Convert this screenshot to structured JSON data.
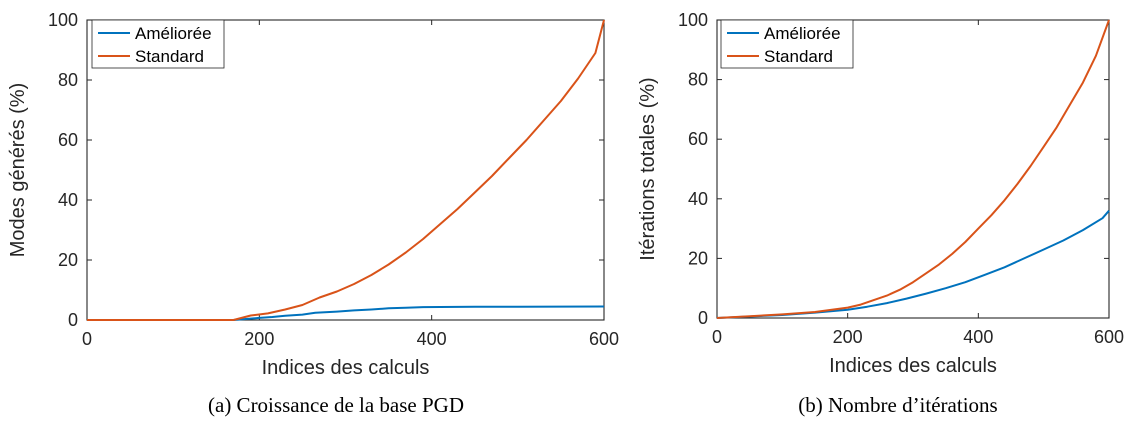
{
  "chart_data": [
    {
      "type": "line",
      "caption": "(a) Croissance de la base PGD",
      "xlabel": "Indices des calculs",
      "ylabel": "Modes générés (%)",
      "xlim": [
        0,
        600
      ],
      "ylim": [
        0,
        100
      ],
      "xticks": [
        "0",
        "200",
        "400",
        "600"
      ],
      "yticks": [
        "0",
        "20",
        "40",
        "60",
        "80",
        "100"
      ],
      "grid": false,
      "legend": "top-left",
      "series": [
        {
          "name": "Améliorée",
          "color": "#0072BD",
          "x": [
            0,
            170,
            200,
            215,
            230,
            250,
            265,
            290,
            310,
            330,
            350,
            370,
            390,
            450,
            500,
            600
          ],
          "y": [
            0,
            0,
            0.7,
            1.0,
            1.4,
            1.8,
            2.4,
            2.8,
            3.2,
            3.5,
            3.9,
            4.1,
            4.3,
            4.4,
            4.4,
            4.5
          ]
        },
        {
          "name": "Standard",
          "color": "#D95319",
          "x": [
            0,
            170,
            190,
            210,
            230,
            250,
            270,
            290,
            310,
            330,
            350,
            370,
            390,
            410,
            430,
            450,
            470,
            490,
            510,
            530,
            550,
            570,
            590,
            600
          ],
          "y": [
            0,
            0,
            1.5,
            2.2,
            3.5,
            5.0,
            7.5,
            9.5,
            12,
            15,
            18.5,
            22.5,
            27,
            32,
            37,
            42.5,
            48,
            54,
            60,
            66.5,
            73,
            80.5,
            89,
            100
          ]
        }
      ]
    },
    {
      "type": "line",
      "caption": "(b) Nombre d’itérations",
      "xlabel": "Indices des calculs",
      "ylabel": "Itérations totales (%)",
      "xlim": [
        0,
        600
      ],
      "ylim": [
        0,
        100
      ],
      "xticks": [
        "0",
        "200",
        "400",
        "600"
      ],
      "yticks": [
        "0",
        "20",
        "40",
        "60",
        "80",
        "100"
      ],
      "grid": false,
      "legend": "top-left",
      "series": [
        {
          "name": "Améliorée",
          "color": "#0072BD",
          "x": [
            0,
            50,
            100,
            150,
            200,
            230,
            260,
            290,
            320,
            350,
            380,
            410,
            440,
            470,
            500,
            530,
            560,
            590,
            600
          ],
          "y": [
            0,
            0.5,
            1.0,
            1.8,
            2.8,
            3.8,
            5.0,
            6.5,
            8.2,
            10.0,
            12.0,
            14.5,
            17.0,
            20.0,
            23.0,
            26.0,
            29.5,
            33.5,
            36
          ]
        },
        {
          "name": "Standard",
          "color": "#D95319",
          "x": [
            0,
            50,
            100,
            150,
            200,
            220,
            240,
            260,
            280,
            300,
            320,
            340,
            360,
            380,
            400,
            420,
            440,
            460,
            480,
            500,
            520,
            540,
            560,
            580,
            600
          ],
          "y": [
            0,
            0.6,
            1.2,
            2.0,
            3.5,
            4.5,
            6.0,
            7.5,
            9.5,
            12.0,
            15.0,
            18.0,
            21.5,
            25.5,
            30.0,
            34.5,
            39.5,
            45.0,
            51.0,
            57.5,
            64.0,
            71.5,
            79.0,
            88.0,
            100
          ]
        }
      ]
    }
  ]
}
